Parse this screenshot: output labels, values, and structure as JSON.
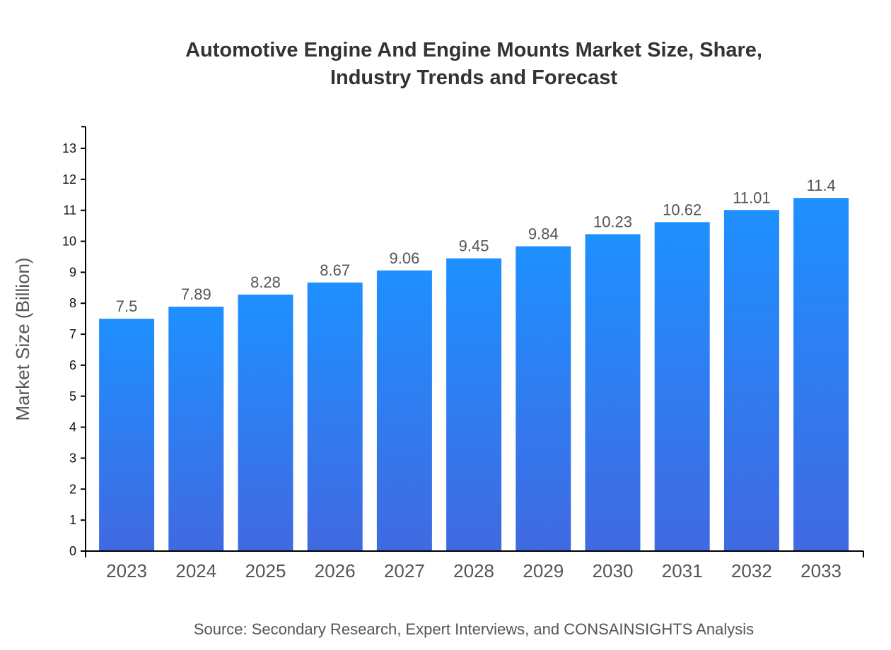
{
  "chart_data": {
    "type": "bar",
    "title": "Automotive Engine And Engine Mounts Market Size, Share, Industry Trends and Forecast",
    "title_lines": [
      "Automotive Engine And Engine Mounts Market Size, Share,",
      "Industry Trends and Forecast"
    ],
    "categories": [
      "2023",
      "2024",
      "2025",
      "2026",
      "2027",
      "2028",
      "2029",
      "2030",
      "2031",
      "2032",
      "2033"
    ],
    "values": [
      7.5,
      7.89,
      8.28,
      8.67,
      9.06,
      9.45,
      9.84,
      10.23,
      10.62,
      11.01,
      11.4
    ],
    "data_labels": [
      "7.5",
      "7.89",
      "8.28",
      "8.67",
      "9.06",
      "9.45",
      "9.84",
      "10.23",
      "10.62",
      "11.01",
      "11.4"
    ],
    "xlabel": "",
    "ylabel": "Market Size (Billion)",
    "ylim": [
      0,
      13.7
    ],
    "yticks": [
      0,
      1,
      2,
      3,
      4,
      5,
      6,
      7,
      8,
      9,
      10,
      11,
      12,
      13
    ],
    "grid": false,
    "colors": {
      "bar_top": "#1e90ff",
      "bar_bottom": "#4169e1"
    },
    "source": "Source: Secondary Research, Expert Interviews, and CONSAINSIGHTS Analysis"
  }
}
